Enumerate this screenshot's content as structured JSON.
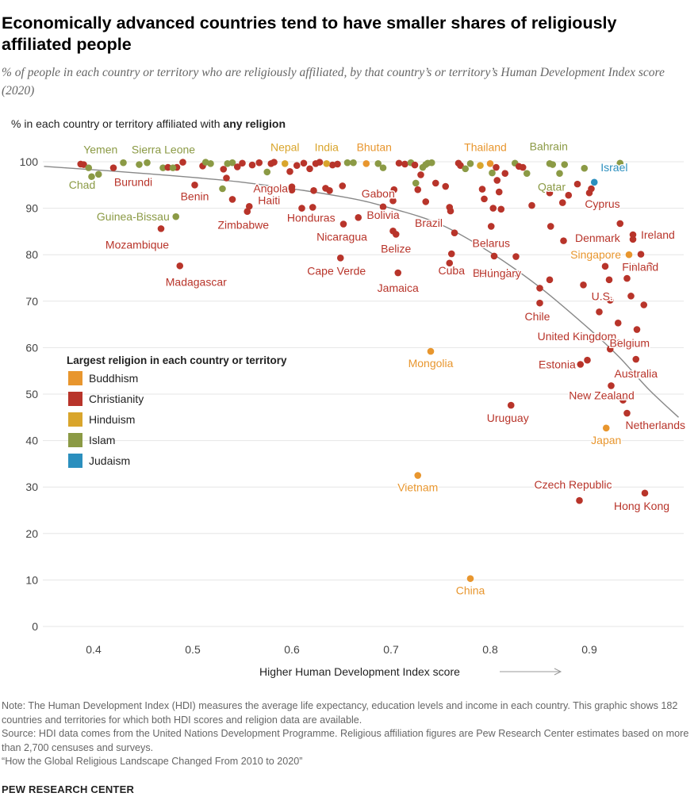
{
  "title": "Economically advanced countries tend to have smaller shares of religiously affiliated people",
  "subtitle": "% of people in each country or territory who are religiously affiliated, by that country’s or territory’s Human Development Index score (2020)",
  "ylabel_prefix": "% in each country or territory affiliated with ",
  "ylabel_bold": "any religion",
  "note_line1": "Note: The Human Development Index (HDI) measures the average life expectancy, education levels and income in each country. This graphic shows 182 countries and territories for which both HDI scores and religion data are available.",
  "note_line2": "Source: HDI data comes from the United Nations Development Programme. Religious affiliation figures are Pew Research Center estimates based on more than 2,700 censuses and surveys.",
  "note_line3": "“How the Global Religious Landscape Changed From 2010 to 2020”",
  "brand": "PEW RESEARCH CENTER",
  "chart_data": {
    "type": "scatter",
    "xlabel": "Higher Human Development Index score",
    "xlim": [
      0.35,
      0.99
    ],
    "ylim": [
      0,
      100
    ],
    "x_ticks": [
      0.4,
      0.5,
      0.6,
      0.7,
      0.8,
      0.9
    ],
    "x_tick_labels": [
      "0.4",
      "0.5",
      "0.6",
      "0.7",
      "0.8",
      "0.9"
    ],
    "y_ticks": [
      0,
      10,
      20,
      30,
      40,
      50,
      60,
      70,
      80,
      90,
      100
    ],
    "y_tick_labels": [
      "0",
      "10",
      "20",
      "30",
      "40",
      "50",
      "60",
      "70",
      "80",
      "90",
      "100"
    ],
    "legend_title": "Largest religion in each country or territory",
    "legend": [
      {
        "name": "Buddhism",
        "color": "#e8962e"
      },
      {
        "name": "Christianity",
        "color": "#b8342a"
      },
      {
        "name": "Hinduism",
        "color": "#d9a52c"
      },
      {
        "name": "Islam",
        "color": "#8b9a45"
      },
      {
        "name": "Judaism",
        "color": "#2b8fbe"
      }
    ],
    "series_colors": {
      "Buddhism": "#e8962e",
      "Christianity": "#b8342a",
      "Hinduism": "#d9a52c",
      "Islam": "#8b9a45",
      "Judaism": "#2b8fbe"
    },
    "trend_line": {
      "description": "fitted curve",
      "x": [
        0.35,
        0.45,
        0.55,
        0.65,
        0.7,
        0.75,
        0.8,
        0.85,
        0.9,
        0.93,
        0.96,
        0.99
      ],
      "y": [
        99,
        97.5,
        95.6,
        92.5,
        90,
        86.5,
        80.5,
        73,
        64,
        58,
        51,
        45
      ]
    },
    "labeled_points": [
      {
        "name": "Yemen",
        "x": 0.395,
        "y": 98.7,
        "religion": "Islam"
      },
      {
        "name": "Chad",
        "x": 0.398,
        "y": 96.8,
        "religion": "Islam"
      },
      {
        "name": "Burundi",
        "x": 0.42,
        "y": 98.7,
        "religion": "Christianity"
      },
      {
        "name": "Sierra Leone",
        "x": 0.48,
        "y": 98.7,
        "religion": "Islam"
      },
      {
        "name": "Benin",
        "x": 0.502,
        "y": 95.0,
        "religion": "Christianity"
      },
      {
        "name": "Guinea-Bissau",
        "x": 0.483,
        "y": 88.2,
        "religion": "Islam"
      },
      {
        "name": "Mozambique",
        "x": 0.468,
        "y": 85.6,
        "religion": "Christianity"
      },
      {
        "name": "Madagascar",
        "x": 0.487,
        "y": 77.6,
        "religion": "Christianity"
      },
      {
        "name": "Zimbabwe",
        "x": 0.555,
        "y": 89.3,
        "religion": "Christianity"
      },
      {
        "name": "Haiti",
        "x": 0.557,
        "y": 90.4,
        "religion": "Christianity"
      },
      {
        "name": "Angola",
        "x": 0.6,
        "y": 94.6,
        "religion": "Christianity"
      },
      {
        "name": "Nepal",
        "x": 0.593,
        "y": 99.6,
        "religion": "Hinduism"
      },
      {
        "name": "India",
        "x": 0.635,
        "y": 99.6,
        "religion": "Hinduism"
      },
      {
        "name": "Honduras",
        "x": 0.621,
        "y": 90.2,
        "religion": "Christianity"
      },
      {
        "name": "Nicaragua",
        "x": 0.652,
        "y": 86.6,
        "religion": "Christianity"
      },
      {
        "name": "Gabon",
        "x": 0.703,
        "y": 94.0,
        "religion": "Christianity"
      },
      {
        "name": "Bolivia",
        "x": 0.692,
        "y": 90.3,
        "religion": "Christianity"
      },
      {
        "name": "Bhutan",
        "x": 0.675,
        "y": 99.6,
        "religion": "Buddhism"
      },
      {
        "name": "Cape Verde",
        "x": 0.649,
        "y": 79.3,
        "religion": "Christianity"
      },
      {
        "name": "Belize",
        "x": 0.705,
        "y": 84.4,
        "religion": "Christianity"
      },
      {
        "name": "Jamaica",
        "x": 0.707,
        "y": 76.1,
        "religion": "Christianity"
      },
      {
        "name": "Brazil",
        "x": 0.76,
        "y": 89.4,
        "religion": "Christianity"
      },
      {
        "name": "Cuba",
        "x": 0.761,
        "y": 80.2,
        "religion": "Christianity"
      },
      {
        "name": "Mongolia",
        "x": 0.74,
        "y": 59.2,
        "religion": "Buddhism"
      },
      {
        "name": "Vietnam",
        "x": 0.727,
        "y": 32.5,
        "religion": "Buddhism"
      },
      {
        "name": "China",
        "x": 0.78,
        "y": 10.3,
        "religion": "Buddhism"
      },
      {
        "name": "Thailand",
        "x": 0.8,
        "y": 99.6,
        "religion": "Buddhism"
      },
      {
        "name": "Belarus",
        "x": 0.801,
        "y": 86.1,
        "religion": "Christianity"
      },
      {
        "name": "Barbados",
        "x": 0.804,
        "y": 79.7,
        "religion": "Christianity"
      },
      {
        "name": "Hungary",
        "x": 0.826,
        "y": 79.6,
        "religion": "Christianity"
      },
      {
        "name": "Uruguay",
        "x": 0.821,
        "y": 47.6,
        "religion": "Christianity"
      },
      {
        "name": "Chile",
        "x": 0.85,
        "y": 69.6,
        "religion": "Christianity"
      },
      {
        "name": "Bahrain",
        "x": 0.875,
        "y": 99.4,
        "religion": "Islam"
      },
      {
        "name": "Qatar",
        "x": 0.87,
        "y": 97.5,
        "religion": "Islam"
      },
      {
        "name": "Israel",
        "x": 0.905,
        "y": 95.6,
        "religion": "Judaism"
      },
      {
        "name": "Cyprus",
        "x": 0.902,
        "y": 94.2,
        "religion": "Christianity"
      },
      {
        "name": "Ireland",
        "x": 0.944,
        "y": 84.3,
        "religion": "Christianity"
      },
      {
        "name": "Denmark",
        "x": 0.931,
        "y": 86.7,
        "religion": "Christianity"
      },
      {
        "name": "Singapore",
        "x": 0.94,
        "y": 80.0,
        "religion": "Buddhism"
      },
      {
        "name": "Finland",
        "x": 0.945,
        "y": 77.4,
        "religion": "Christianity"
      },
      {
        "name": "U.S.",
        "x": 0.921,
        "y": 70.2,
        "religion": "Christianity"
      },
      {
        "name": "United Kingdom",
        "x": 0.921,
        "y": 59.7,
        "religion": "Christianity"
      },
      {
        "name": "Belgium",
        "x": 0.93,
        "y": 61.0,
        "religion": "Christianity"
      },
      {
        "name": "Estonia",
        "x": 0.891,
        "y": 56.4,
        "religion": "Christianity"
      },
      {
        "name": "Australia",
        "x": 0.947,
        "y": 57.5,
        "religion": "Christianity"
      },
      {
        "name": "New Zealand",
        "x": 0.922,
        "y": 51.8,
        "religion": "Christianity"
      },
      {
        "name": "Netherlands",
        "x": 0.938,
        "y": 45.9,
        "religion": "Christianity"
      },
      {
        "name": "Japan",
        "x": 0.917,
        "y": 42.7,
        "religion": "Buddhism"
      },
      {
        "name": "Czech Republic",
        "x": 0.89,
        "y": 27.1,
        "religion": "Christianity"
      },
      {
        "name": "Hong Kong",
        "x": 0.956,
        "y": 28.7,
        "religion": "Christianity"
      }
    ],
    "other_points": [
      {
        "x": 0.387,
        "y": 99.5,
        "r": "Christianity"
      },
      {
        "x": 0.39,
        "y": 99.4,
        "r": "Christianity"
      },
      {
        "x": 0.405,
        "y": 97.3,
        "r": "Islam"
      },
      {
        "x": 0.43,
        "y": 99.8,
        "r": "Islam"
      },
      {
        "x": 0.446,
        "y": 99.4,
        "r": "Islam"
      },
      {
        "x": 0.454,
        "y": 99.8,
        "r": "Islam"
      },
      {
        "x": 0.47,
        "y": 98.7,
        "r": "Islam"
      },
      {
        "x": 0.475,
        "y": 98.8,
        "r": "Christianity"
      },
      {
        "x": 0.484,
        "y": 98.8,
        "r": "Christianity"
      },
      {
        "x": 0.49,
        "y": 99.9,
        "r": "Christianity"
      },
      {
        "x": 0.51,
        "y": 99.1,
        "r": "Christianity"
      },
      {
        "x": 0.513,
        "y": 99.9,
        "r": "Islam"
      },
      {
        "x": 0.518,
        "y": 99.6,
        "r": "Islam"
      },
      {
        "x": 0.531,
        "y": 98.4,
        "r": "Christianity"
      },
      {
        "x": 0.535,
        "y": 99.6,
        "r": "Islam"
      },
      {
        "x": 0.54,
        "y": 99.8,
        "r": "Islam"
      },
      {
        "x": 0.545,
        "y": 98.9,
        "r": "Christianity"
      },
      {
        "x": 0.55,
        "y": 99.7,
        "r": "Christianity"
      },
      {
        "x": 0.53,
        "y": 94.2,
        "r": "Islam"
      },
      {
        "x": 0.534,
        "y": 96.5,
        "r": "Christianity"
      },
      {
        "x": 0.54,
        "y": 91.9,
        "r": "Christianity"
      },
      {
        "x": 0.56,
        "y": 99.3,
        "r": "Christianity"
      },
      {
        "x": 0.567,
        "y": 99.8,
        "r": "Christianity"
      },
      {
        "x": 0.575,
        "y": 97.8,
        "r": "Islam"
      },
      {
        "x": 0.579,
        "y": 99.6,
        "r": "Christianity"
      },
      {
        "x": 0.582,
        "y": 99.9,
        "r": "Christianity"
      },
      {
        "x": 0.598,
        "y": 97.9,
        "r": "Christianity"
      },
      {
        "x": 0.605,
        "y": 99.2,
        "r": "Christianity"
      },
      {
        "x": 0.612,
        "y": 99.7,
        "r": "Christianity"
      },
      {
        "x": 0.618,
        "y": 98.5,
        "r": "Christianity"
      },
      {
        "x": 0.624,
        "y": 99.6,
        "r": "Christianity"
      },
      {
        "x": 0.628,
        "y": 99.9,
        "r": "Christianity"
      },
      {
        "x": 0.641,
        "y": 99.3,
        "r": "Christianity"
      },
      {
        "x": 0.646,
        "y": 99.5,
        "r": "Christianity"
      },
      {
        "x": 0.656,
        "y": 99.8,
        "r": "Islam"
      },
      {
        "x": 0.662,
        "y": 99.8,
        "r": "Islam"
      },
      {
        "x": 0.687,
        "y": 99.6,
        "r": "Islam"
      },
      {
        "x": 0.692,
        "y": 98.7,
        "r": "Islam"
      },
      {
        "x": 0.6,
        "y": 93.9,
        "r": "Christianity"
      },
      {
        "x": 0.61,
        "y": 90.0,
        "r": "Christianity"
      },
      {
        "x": 0.622,
        "y": 93.8,
        "r": "Christianity"
      },
      {
        "x": 0.634,
        "y": 94.3,
        "r": "Christianity"
      },
      {
        "x": 0.638,
        "y": 93.8,
        "r": "Christianity"
      },
      {
        "x": 0.651,
        "y": 94.8,
        "r": "Christianity"
      },
      {
        "x": 0.667,
        "y": 88.0,
        "r": "Christianity"
      },
      {
        "x": 0.702,
        "y": 91.6,
        "r": "Christianity"
      },
      {
        "x": 0.702,
        "y": 85.1,
        "r": "Christianity"
      },
      {
        "x": 0.708,
        "y": 99.7,
        "r": "Christianity"
      },
      {
        "x": 0.714,
        "y": 99.5,
        "r": "Christianity"
      },
      {
        "x": 0.72,
        "y": 99.8,
        "r": "Islam"
      },
      {
        "x": 0.724,
        "y": 99.3,
        "r": "Christianity"
      },
      {
        "x": 0.725,
        "y": 95.4,
        "r": "Islam"
      },
      {
        "x": 0.727,
        "y": 94.0,
        "r": "Christianity"
      },
      {
        "x": 0.73,
        "y": 97.2,
        "r": "Christianity"
      },
      {
        "x": 0.732,
        "y": 98.8,
        "r": "Islam"
      },
      {
        "x": 0.735,
        "y": 99.4,
        "r": "Islam"
      },
      {
        "x": 0.737,
        "y": 99.7,
        "r": "Islam"
      },
      {
        "x": 0.741,
        "y": 99.8,
        "r": "Islam"
      },
      {
        "x": 0.745,
        "y": 95.4,
        "r": "Christianity"
      },
      {
        "x": 0.755,
        "y": 94.7,
        "r": "Christianity"
      },
      {
        "x": 0.759,
        "y": 90.2,
        "r": "Christianity"
      },
      {
        "x": 0.764,
        "y": 84.7,
        "r": "Christianity"
      },
      {
        "x": 0.735,
        "y": 91.4,
        "r": "Christianity"
      },
      {
        "x": 0.759,
        "y": 78.2,
        "r": "Christianity"
      },
      {
        "x": 0.768,
        "y": 99.7,
        "r": "Christianity"
      },
      {
        "x": 0.77,
        "y": 99.2,
        "r": "Christianity"
      },
      {
        "x": 0.775,
        "y": 98.5,
        "r": "Islam"
      },
      {
        "x": 0.78,
        "y": 99.6,
        "r": "Islam"
      },
      {
        "x": 0.79,
        "y": 99.2,
        "r": "Hinduism"
      },
      {
        "x": 0.792,
        "y": 94.1,
        "r": "Christianity"
      },
      {
        "x": 0.794,
        "y": 92.0,
        "r": "Christianity"
      },
      {
        "x": 0.802,
        "y": 97.6,
        "r": "Islam"
      },
      {
        "x": 0.803,
        "y": 90.0,
        "r": "Christianity"
      },
      {
        "x": 0.806,
        "y": 98.8,
        "r": "Christianity"
      },
      {
        "x": 0.807,
        "y": 96.0,
        "r": "Christianity"
      },
      {
        "x": 0.809,
        "y": 93.5,
        "r": "Christianity"
      },
      {
        "x": 0.811,
        "y": 89.8,
        "r": "Christianity"
      },
      {
        "x": 0.815,
        "y": 97.5,
        "r": "Christianity"
      },
      {
        "x": 0.825,
        "y": 99.7,
        "r": "Islam"
      },
      {
        "x": 0.829,
        "y": 99.0,
        "r": "Christianity"
      },
      {
        "x": 0.833,
        "y": 98.8,
        "r": "Christianity"
      },
      {
        "x": 0.837,
        "y": 97.5,
        "r": "Islam"
      },
      {
        "x": 0.842,
        "y": 90.6,
        "r": "Christianity"
      },
      {
        "x": 0.86,
        "y": 99.6,
        "r": "Islam"
      },
      {
        "x": 0.863,
        "y": 99.4,
        "r": "Islam"
      },
      {
        "x": 0.86,
        "y": 93.3,
        "r": "Christianity"
      },
      {
        "x": 0.861,
        "y": 86.1,
        "r": "Christianity"
      },
      {
        "x": 0.86,
        "y": 74.6,
        "r": "Christianity"
      },
      {
        "x": 0.85,
        "y": 72.8,
        "r": "Christianity"
      },
      {
        "x": 0.874,
        "y": 83.0,
        "r": "Christianity"
      },
      {
        "x": 0.873,
        "y": 91.2,
        "r": "Christianity"
      },
      {
        "x": 0.879,
        "y": 92.8,
        "r": "Christianity"
      },
      {
        "x": 0.888,
        "y": 95.2,
        "r": "Christianity"
      },
      {
        "x": 0.9,
        "y": 93.3,
        "r": "Christianity"
      },
      {
        "x": 0.894,
        "y": 73.5,
        "r": "Christianity"
      },
      {
        "x": 0.91,
        "y": 67.7,
        "r": "Christianity"
      },
      {
        "x": 0.916,
        "y": 77.5,
        "r": "Christianity"
      },
      {
        "x": 0.92,
        "y": 74.6,
        "r": "Christianity"
      },
      {
        "x": 0.929,
        "y": 65.3,
        "r": "Christianity"
      },
      {
        "x": 0.938,
        "y": 74.9,
        "r": "Christianity"
      },
      {
        "x": 0.942,
        "y": 71.1,
        "r": "Christianity"
      },
      {
        "x": 0.952,
        "y": 80.1,
        "r": "Christianity"
      },
      {
        "x": 0.961,
        "y": 77.6,
        "r": "Christianity"
      },
      {
        "x": 0.948,
        "y": 63.9,
        "r": "Christianity"
      },
      {
        "x": 0.955,
        "y": 69.2,
        "r": "Christianity"
      },
      {
        "x": 0.944,
        "y": 83.3,
        "r": "Christianity"
      },
      {
        "x": 0.898,
        "y": 57.3,
        "r": "Christianity"
      },
      {
        "x": 0.934,
        "y": 48.7,
        "r": "Christianity"
      },
      {
        "x": 0.931,
        "y": 99.7,
        "r": "Islam"
      },
      {
        "x": 0.895,
        "y": 98.6,
        "r": "Islam"
      }
    ]
  }
}
